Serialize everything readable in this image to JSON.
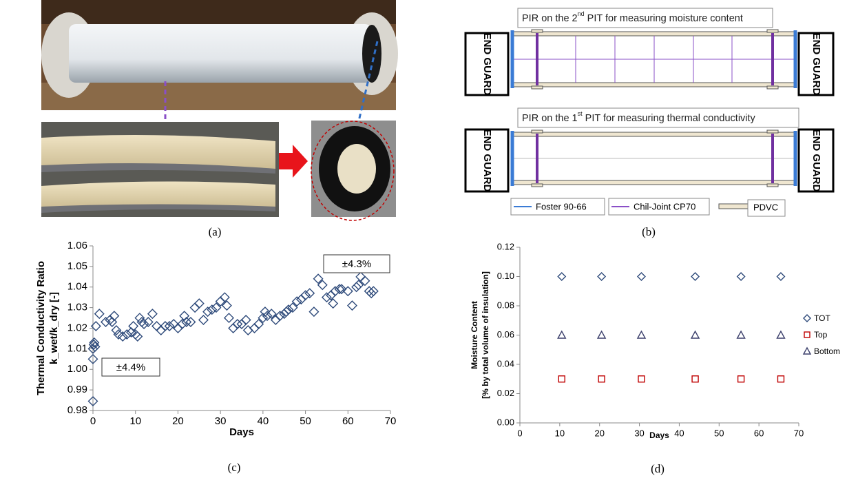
{
  "panels": [
    "(a)",
    "(b)",
    "(c)",
    "(d)"
  ],
  "diagram": {
    "top_title": [
      "PIR on the 2",
      "nd",
      " PIT for measuring moisture content"
    ],
    "bottom_title": [
      "PIR on the 1",
      "st",
      " PIT for measuring thermal conductivity"
    ],
    "end_guards": [
      "END GUARD",
      "END GUARD",
      "END GUARD",
      "END GUARD"
    ],
    "legend": [
      "Foster 90-66",
      "Chil-Joint CP70",
      "PDVC"
    ]
  },
  "chart_data": [
    {
      "type": "scatter",
      "x_label": "Days",
      "y_label": [
        "Thermal Conductivity Ratio",
        "k_wet/k_dry [-]"
      ],
      "annotations": [
        "±4.3%",
        "±4.4%"
      ],
      "color": "#2e4a7a",
      "marker": "diamond",
      "x": [
        0,
        0,
        0,
        0.2,
        0.3,
        0.5,
        0.7,
        1.5,
        3,
        4,
        4.5,
        5,
        5.5,
        6,
        7,
        8,
        9,
        9.5,
        10,
        10.5,
        11,
        11.5,
        12,
        13,
        14,
        15,
        16,
        17,
        18,
        19,
        20,
        21,
        21.5,
        22,
        23,
        24,
        25,
        26,
        27,
        28,
        29,
        30,
        31,
        31.5,
        32,
        33,
        34,
        35,
        36,
        36.5,
        38,
        39,
        40,
        40.5,
        41,
        42,
        43,
        44,
        45,
        45.5,
        46,
        47,
        48,
        49,
        50,
        51,
        52,
        53,
        54,
        55,
        56,
        56.5,
        57,
        58,
        58.5,
        60,
        61,
        62,
        62.5,
        63,
        64,
        65,
        65.5,
        66
      ],
      "values": [
        0.9845,
        1.005,
        1.01,
        1.012,
        1.013,
        1.011,
        1.021,
        1.027,
        1.023,
        1.024,
        1.023,
        1.026,
        1.019,
        1.017,
        1.016,
        1.017,
        1.018,
        1.021,
        1.017,
        1.016,
        1.025,
        1.023,
        1.022,
        1.023,
        1.027,
        1.021,
        1.019,
        1.021,
        1.021,
        1.022,
        1.02,
        1.022,
        1.026,
        1.023,
        1.023,
        1.03,
        1.032,
        1.024,
        1.028,
        1.029,
        1.03,
        1.033,
        1.035,
        1.031,
        1.025,
        1.02,
        1.022,
        1.022,
        1.024,
        1.019,
        1.02,
        1.022,
        1.025,
        1.028,
        1.026,
        1.027,
        1.024,
        1.026,
        1.027,
        1.028,
        1.029,
        1.03,
        1.033,
        1.034,
        1.036,
        1.037,
        1.028,
        1.044,
        1.041,
        1.035,
        1.036,
        1.032,
        1.038,
        1.039,
        1.039,
        1.038,
        1.031,
        1.04,
        1.041,
        1.045,
        1.043,
        1.038,
        1.037,
        1.038
      ],
      "xlim": [
        0,
        70
      ],
      "xticks": [
        0,
        10,
        20,
        30,
        40,
        50,
        60,
        70
      ],
      "ylim": [
        0.98,
        1.06
      ],
      "yticks": [
        0.98,
        0.99,
        {
          "value": 1,
          "label": "1.00"
        },
        1.01,
        1.02,
        1.03,
        1.04,
        1.05,
        1.06
      ]
    },
    {
      "type": "scatter",
      "x_label": "Days",
      "y_label": [
        "Moisture Content",
        "[% by total volume of insulation]"
      ],
      "x": [
        10.5,
        20.5,
        30.5,
        44,
        55.5,
        65.5
      ],
      "series": [
        {
          "name": "TOT",
          "color": "#2e4a7a",
          "marker": "diamond",
          "values": [
            0.1,
            0.1,
            0.1,
            0.1,
            0.1,
            0.1
          ]
        },
        {
          "name": "Top",
          "color": "#c00000",
          "marker": "square",
          "values": [
            0.03,
            0.03,
            0.03,
            0.03,
            0.03,
            0.03
          ]
        },
        {
          "name": "Bottom",
          "color": "#3b3f6b",
          "marker": "triangle",
          "values": [
            0.06,
            0.06,
            0.06,
            0.06,
            0.06,
            0.06
          ]
        }
      ],
      "xlim": [
        0,
        70
      ],
      "xticks": [
        0,
        10,
        20,
        30,
        40,
        50,
        60,
        70
      ],
      "ylim": [
        0,
        0.12
      ],
      "yticks": [
        {
          "value": 0,
          "label": "0.00"
        },
        0.02,
        0.04,
        0.06,
        0.08,
        {
          "value": 0.1,
          "label": "0.10"
        },
        0.12
      ],
      "legend": "right"
    }
  ]
}
